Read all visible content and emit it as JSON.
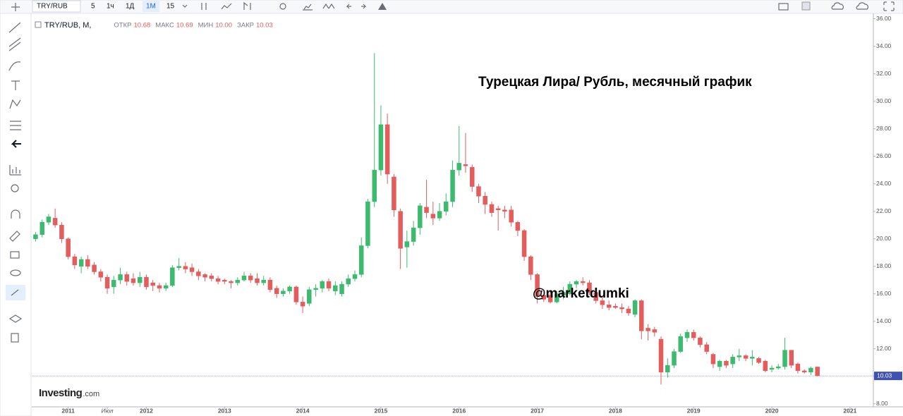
{
  "toolbar": {
    "symbol": "TRY/RUB",
    "intervals": [
      "5",
      "1ч",
      "1Д",
      "1М",
      "15"
    ]
  },
  "chart_data": {
    "type": "candlestick",
    "title": "Турецкая Лира/ Рубль, месячный график",
    "watermark": "@marketdumki",
    "logo": {
      "brand": "Investing",
      "suffix": ".com"
    },
    "legend": {
      "symbol": "TRY/RUB, M,",
      "open": "ОТКР",
      "high": "МАКС",
      "low": "МИН",
      "close": "ЗАКР"
    },
    "last_labels": {
      "open": "10.68",
      "high": "10.69",
      "low": "10.00",
      "close": "10.03"
    },
    "up_color": "#3cba6e",
    "down_color": "#e35d5d",
    "price_line_color": "#3f51b5",
    "grid": false,
    "xlim": [
      2010.534,
      2021.299
    ],
    "ylim": [
      7.78,
      36.39
    ],
    "xticks": [
      2011,
      {
        "value": 2011.5,
        "label": "Июл"
      },
      2012,
      2013,
      2014,
      2015,
      2016,
      2017,
      2018,
      2019,
      2020,
      2021
    ],
    "yticks": [
      {
        "value": 8,
        "label": "8.00"
      },
      {
        "value": 10,
        "label": "10.00"
      },
      {
        "value": 12,
        "label": "12.00"
      },
      {
        "value": 14,
        "label": "14.00"
      },
      {
        "value": 16,
        "label": "16.00"
      },
      {
        "value": 18,
        "label": "18.00"
      },
      {
        "value": 20,
        "label": "20.00"
      },
      {
        "value": 22,
        "label": "22.00"
      },
      {
        "value": 24,
        "label": "24.00"
      },
      {
        "value": 26,
        "label": "26.00"
      },
      {
        "value": 28,
        "label": "28.00"
      },
      {
        "value": 30,
        "label": "30.00"
      },
      {
        "value": 32,
        "label": "32.00"
      },
      {
        "value": 34,
        "label": "34.00"
      },
      {
        "value": 36,
        "label": "36.00"
      }
    ],
    "x": [
      2010.583,
      2010.667,
      2010.75,
      2010.833,
      2010.917,
      2011,
      2011.083,
      2011.167,
      2011.25,
      2011.333,
      2011.417,
      2011.5,
      2011.583,
      2011.667,
      2011.75,
      2011.833,
      2011.917,
      2012,
      2012.083,
      2012.167,
      2012.25,
      2012.333,
      2012.417,
      2012.5,
      2012.583,
      2012.667,
      2012.75,
      2012.833,
      2012.917,
      2013,
      2013.083,
      2013.167,
      2013.25,
      2013.333,
      2013.417,
      2013.5,
      2013.583,
      2013.667,
      2013.75,
      2013.833,
      2013.917,
      2014,
      2014.083,
      2014.167,
      2014.25,
      2014.333,
      2014.417,
      2014.5,
      2014.583,
      2014.667,
      2014.75,
      2014.833,
      2014.917,
      2015,
      2015.083,
      2015.167,
      2015.25,
      2015.333,
      2015.417,
      2015.5,
      2015.583,
      2015.667,
      2015.75,
      2015.833,
      2015.917,
      2016,
      2016.083,
      2016.167,
      2016.25,
      2016.333,
      2016.417,
      2016.5,
      2016.583,
      2016.667,
      2016.75,
      2016.833,
      2016.917,
      2017,
      2017.083,
      2017.167,
      2017.25,
      2017.333,
      2017.417,
      2017.5,
      2017.583,
      2017.667,
      2017.75,
      2017.833,
      2017.917,
      2018,
      2018.083,
      2018.167,
      2018.25,
      2018.333,
      2018.417,
      2018.5,
      2018.583,
      2018.667,
      2018.75,
      2018.833,
      2018.917,
      2019,
      2019.083,
      2019.167,
      2019.25,
      2019.333,
      2019.417,
      2019.5,
      2019.583,
      2019.667,
      2019.75,
      2019.833,
      2019.917,
      2020,
      2020.083,
      2020.167,
      2020.25,
      2020.333,
      2020.417,
      2020.5,
      2020.583
    ],
    "open": [
      20.0,
      20.3,
      21.2,
      21.5,
      21.0,
      20.0,
      18.7,
      18.0,
      18.5,
      18.1,
      17.6,
      17.2,
      16.5,
      17.0,
      17.4,
      17.1,
      16.8,
      17.2,
      16.8,
      16.6,
      16.4,
      16.6,
      17.9,
      18.0,
      17.9,
      17.6,
      17.4,
      17.3,
      17.1,
      17.0,
      16.9,
      16.8,
      17.0,
      17.3,
      17.1,
      16.8,
      17.0,
      16.4,
      16.0,
      16.2,
      16.5,
      15.4,
      15.3,
      16.3,
      16.4,
      16.9,
      16.2,
      16.0,
      16.7,
      17.1,
      17.4,
      19.5,
      22.7,
      25.0,
      28.3,
      24.5,
      22.0,
      19.4,
      19.8,
      20.8,
      22.3,
      21.8,
      21.5,
      22.0,
      22.7,
      25.0,
      25.4,
      25.2,
      23.8,
      23.1,
      22.5,
      22.2,
      22.1,
      22.1,
      21.2,
      20.6,
      18.7,
      17.4,
      15.9,
      15.9,
      15.4,
      15.9,
      16.0,
      16.7,
      16.9,
      16.8,
      16.1,
      15.5,
      15.2,
      15.1,
      15.0,
      14.9,
      14.5,
      15.5,
      13.5,
      13.4,
      12.7,
      10.3,
      10.8,
      11.8,
      12.8,
      13.2,
      12.8,
      12.3,
      11.6,
      10.7,
      11.1,
      10.9,
      11.4,
      11.5,
      11.3,
      11.3,
      11.1,
      10.5,
      10.6,
      10.7,
      11.9,
      10.9,
      10.4,
      10.3,
      10.68
    ],
    "high": [
      20.5,
      21.4,
      21.8,
      22.2,
      21.2,
      20.1,
      18.9,
      18.7,
      18.8,
      18.3,
      17.8,
      17.4,
      17.3,
      17.9,
      17.6,
      17.5,
      17.6,
      17.4,
      17.0,
      16.8,
      16.8,
      18.1,
      18.6,
      18.3,
      18.2,
      17.8,
      17.5,
      17.5,
      17.3,
      17.1,
      17.0,
      17.2,
      17.6,
      17.5,
      17.5,
      17.3,
      17.2,
      16.6,
      16.4,
      16.6,
      16.6,
      15.8,
      16.5,
      16.7,
      17.0,
      17.1,
      16.9,
      16.9,
      17.4,
      17.7,
      20.1,
      22.9,
      33.5,
      29.7,
      29.1,
      24.7,
      22.2,
      20.6,
      21.3,
      22.6,
      24.3,
      22.7,
      22.6,
      23.3,
      25.7,
      28.2,
      27.7,
      25.4,
      24.0,
      23.4,
      22.7,
      22.4,
      22.4,
      22.4,
      21.3,
      20.7,
      18.8,
      17.5,
      16.2,
      16.2,
      16.2,
      16.5,
      16.9,
      17.0,
      17.2,
      17.0,
      16.3,
      15.8,
      15.5,
      15.3,
      15.3,
      15.1,
      15.6,
      15.6,
      13.8,
      13.6,
      12.9,
      11.3,
      12.0,
      13.1,
      13.4,
      13.4,
      12.9,
      12.5,
      11.7,
      11.2,
      11.2,
      11.6,
      12.0,
      11.6,
      11.9,
      11.4,
      11.2,
      10.8,
      10.9,
      12.8,
      11.9,
      11.0,
      10.5,
      10.7,
      10.69
    ],
    "low": [
      19.8,
      20.1,
      21.0,
      20.8,
      19.7,
      18.5,
      17.8,
      17.5,
      17.8,
      17.4,
      16.9,
      16.0,
      16.0,
      16.7,
      16.6,
      16.6,
      16.5,
      16.3,
      16.2,
      16.1,
      16.2,
      16.5,
      17.7,
      17.5,
      17.3,
      17.0,
      16.9,
      16.9,
      16.7,
      16.7,
      16.4,
      16.6,
      16.9,
      16.8,
      16.6,
      16.6,
      16.1,
      15.7,
      15.8,
      16.0,
      15.2,
      14.6,
      15.1,
      15.8,
      16.1,
      16.2,
      15.9,
      15.8,
      16.5,
      16.9,
      17.2,
      19.3,
      22.3,
      24.6,
      24.0,
      21.6,
      17.8,
      17.9,
      19.5,
      20.3,
      21.5,
      21.0,
      21.3,
      21.7,
      22.3,
      24.6,
      24.8,
      23.4,
      22.6,
      21.8,
      21.6,
      20.6,
      21.5,
      20.9,
      20.2,
      18.4,
      17.0,
      15.3,
      15.4,
      15.3,
      15.3,
      15.6,
      15.9,
      16.4,
      16.6,
      15.9,
      15.3,
      14.9,
      14.8,
      14.9,
      14.6,
      14.4,
      14.3,
      12.7,
      12.6,
      12.9,
      9.4,
      9.9,
      10.6,
      11.7,
      12.5,
      12.6,
      12.1,
      11.6,
      10.6,
      10.4,
      10.6,
      10.6,
      11.1,
      11.1,
      10.8,
      10.9,
      10.3,
      10.3,
      10.5,
      10.5,
      10.6,
      10.2,
      10.2,
      10.1,
      10.0
    ],
    "close": [
      20.3,
      21.2,
      21.6,
      21.0,
      20.0,
      18.7,
      18.1,
      18.5,
      18.0,
      17.6,
      17.2,
      16.4,
      17.0,
      17.4,
      16.9,
      16.8,
      17.2,
      16.5,
      16.6,
      16.4,
      16.6,
      17.9,
      18.0,
      17.8,
      17.6,
      17.3,
      17.2,
      17.1,
      16.9,
      16.9,
      16.8,
      17.0,
      17.3,
      17.0,
      16.8,
      17.0,
      16.3,
      16.0,
      16.2,
      16.5,
      15.4,
      15.1,
      16.3,
      16.4,
      16.9,
      16.4,
      16.6,
      16.7,
      17.1,
      17.4,
      19.5,
      22.7,
      25.0,
      28.3,
      24.7,
      22.1,
      19.3,
      19.8,
      20.8,
      22.4,
      21.9,
      21.5,
      22.0,
      22.7,
      25.0,
      25.5,
      25.3,
      23.8,
      23.1,
      22.5,
      21.9,
      22.1,
      22.0,
      21.2,
      20.6,
      18.7,
      17.4,
      15.8,
      15.6,
      15.4,
      16.0,
      16.1,
      16.7,
      16.9,
      16.8,
      16.1,
      15.5,
      15.2,
      15.0,
      15.0,
      14.9,
      14.6,
      15.5,
      13.3,
      13.3,
      13.2,
      10.3,
      10.8,
      11.8,
      12.9,
      13.2,
      12.8,
      12.3,
      11.8,
      10.9,
      11.1,
      10.8,
      11.4,
      11.5,
      11.3,
      11.4,
      11.0,
      10.4,
      10.6,
      10.7,
      11.9,
      10.8,
      10.4,
      10.3,
      10.6,
      10.03
    ]
  }
}
